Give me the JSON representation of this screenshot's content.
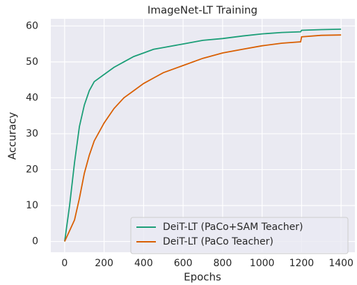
{
  "chart_data": {
    "type": "line",
    "title": "ImageNet-LT Training",
    "x_label": "Epochs",
    "y_label": "Accuracy",
    "x": [
      0,
      25,
      50,
      75,
      100,
      125,
      150,
      200,
      250,
      300,
      350,
      400,
      450,
      500,
      600,
      700,
      800,
      900,
      1000,
      1100,
      1195,
      1200,
      1300,
      1400
    ],
    "series": [
      {
        "name": "DeiT-LT (PaCo+SAM Teacher)",
        "color": "#1b9e77",
        "values": [
          0,
          10,
          22,
          32,
          38,
          42,
          44.5,
          46.5,
          48.5,
          50,
          51.5,
          52.5,
          53.5,
          54,
          55,
          56,
          56.5,
          57.2,
          57.8,
          58.2,
          58.4,
          58.8,
          59,
          59.1
        ]
      },
      {
        "name": "DeiT-LT (PaCo Teacher)",
        "color": "#d95f02",
        "values": [
          0,
          3,
          6,
          12,
          19,
          24,
          28,
          33,
          37,
          40,
          42,
          44,
          45.5,
          47,
          49,
          51,
          52.5,
          53.5,
          54.5,
          55.2,
          55.6,
          57,
          57.4,
          57.5
        ]
      }
    ],
    "xlim": [
      -70,
      1470
    ],
    "xticks": [
      0,
      200,
      400,
      600,
      800,
      1000,
      1200,
      1400
    ],
    "ylim": [
      -3,
      62
    ],
    "yticks": [
      0,
      10,
      20,
      30,
      40,
      50,
      60
    ],
    "grid": true,
    "legend": "lower right"
  }
}
